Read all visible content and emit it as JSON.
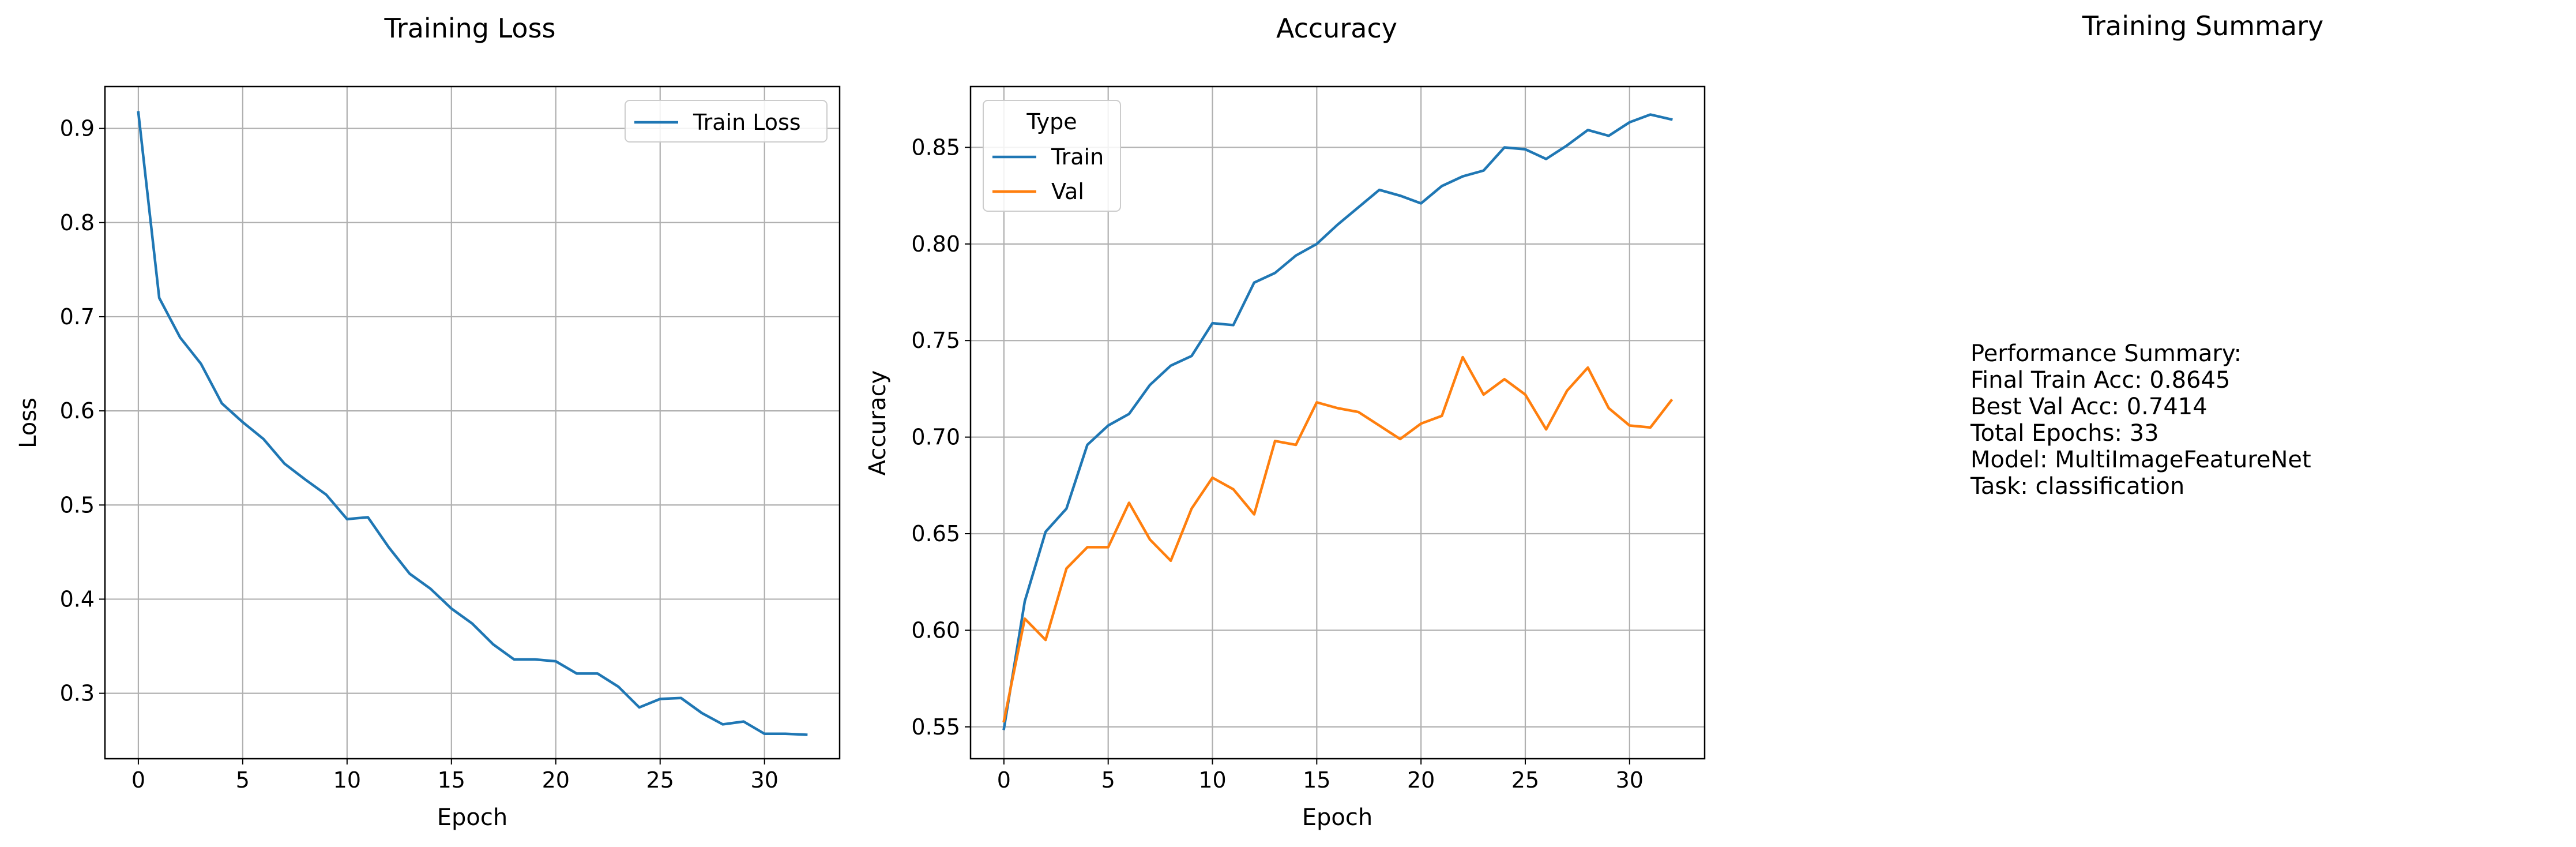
{
  "chart_data": [
    {
      "type": "line",
      "title": "Training Loss",
      "xlabel": "Epoch",
      "ylabel": "Loss",
      "xlim": [
        -1.6,
        33.6
      ],
      "ylim": [
        0.2305,
        0.9445
      ],
      "xticks": [
        0,
        5,
        10,
        15,
        20,
        25,
        30
      ],
      "yticks": [
        0.3,
        0.4,
        0.5,
        0.6,
        0.7,
        0.8,
        0.9
      ],
      "grid": true,
      "legend": {
        "placement": "upper right",
        "title": ""
      },
      "x": [
        0,
        1,
        2,
        3,
        4,
        5,
        6,
        7,
        8,
        9,
        10,
        11,
        12,
        13,
        14,
        15,
        16,
        17,
        18,
        19,
        20,
        21,
        22,
        23,
        24,
        25,
        26,
        27,
        28,
        29,
        30,
        31,
        32
      ],
      "series": [
        {
          "name": "Train Loss",
          "color": "#1f77b4",
          "values": [
            0.917,
            0.72,
            0.678,
            0.65,
            0.608,
            0.588,
            0.57,
            0.544,
            0.527,
            0.511,
            0.485,
            0.487,
            0.455,
            0.427,
            0.411,
            0.39,
            0.374,
            0.352,
            0.336,
            0.336,
            0.334,
            0.321,
            0.321,
            0.307,
            0.285,
            0.294,
            0.295,
            0.279,
            0.267,
            0.27,
            0.257,
            0.257,
            0.256
          ]
        }
      ]
    },
    {
      "type": "line",
      "title": "Accuracy",
      "xlabel": "Epoch",
      "ylabel": "Accuracy",
      "xlim": [
        -1.6,
        33.6
      ],
      "ylim": [
        0.5335,
        0.8815
      ],
      "xticks": [
        0,
        5,
        10,
        15,
        20,
        25,
        30
      ],
      "yticks": [
        0.55,
        0.6,
        0.65,
        0.7,
        0.75,
        0.8,
        0.85
      ],
      "grid": true,
      "legend": {
        "placement": "upper left",
        "title": "Type"
      },
      "x": [
        0,
        1,
        2,
        3,
        4,
        5,
        6,
        7,
        8,
        9,
        10,
        11,
        12,
        13,
        14,
        15,
        16,
        17,
        18,
        19,
        20,
        21,
        22,
        23,
        24,
        25,
        26,
        27,
        28,
        29,
        30,
        31,
        32
      ],
      "series": [
        {
          "name": "Train",
          "color": "#1f77b4",
          "values": [
            0.549,
            0.615,
            0.651,
            0.663,
            0.696,
            0.706,
            0.712,
            0.727,
            0.737,
            0.742,
            0.759,
            0.758,
            0.78,
            0.785,
            0.794,
            0.8,
            0.81,
            0.819,
            0.828,
            0.825,
            0.821,
            0.83,
            0.835,
            0.838,
            0.85,
            0.849,
            0.844,
            0.851,
            0.859,
            0.856,
            0.863,
            0.867,
            0.8645
          ]
        },
        {
          "name": "Val",
          "color": "#ff7f0e",
          "values": [
            0.553,
            0.606,
            0.595,
            0.632,
            0.643,
            0.643,
            0.666,
            0.647,
            0.636,
            0.663,
            0.679,
            0.673,
            0.66,
            0.698,
            0.696,
            0.718,
            0.715,
            0.713,
            0.706,
            0.699,
            0.707,
            0.711,
            0.7414,
            0.722,
            0.73,
            0.722,
            0.704,
            0.724,
            0.736,
            0.715,
            0.706,
            0.705,
            0.719
          ]
        }
      ]
    }
  ],
  "summary": {
    "title": "Training Summary",
    "lines": [
      "Performance Summary:",
      "Final Train Acc: 0.8645",
      "Best Val Acc: 0.7414",
      "Total Epochs: 33",
      "Model: MultiImageFeatureNet",
      "Task: classification"
    ]
  }
}
